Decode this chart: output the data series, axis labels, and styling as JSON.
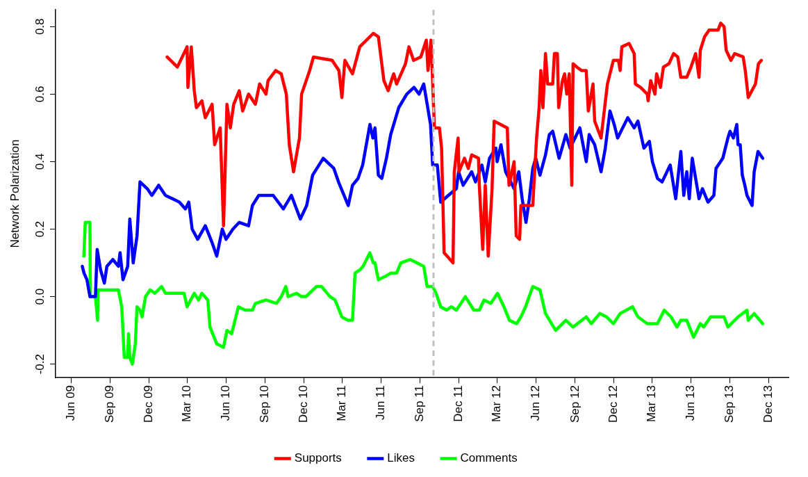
{
  "chart_data": {
    "type": "line",
    "ylabel": "Network Polarization",
    "grid": false,
    "legend": "bottom",
    "xlim": [
      "2009-04-25",
      "2014-01-17"
    ],
    "ylim": [
      -0.24,
      0.85
    ],
    "xticks": [
      {
        "value": "2009-06-01",
        "label": "Jun 09"
      },
      {
        "value": "2009-09-01",
        "label": "Sep 09"
      },
      {
        "value": "2009-12-01",
        "label": "Dec 09"
      },
      {
        "value": "2010-03-01",
        "label": "Mar 10"
      },
      {
        "value": "2010-06-01",
        "label": "Jun 10"
      },
      {
        "value": "2010-09-01",
        "label": "Sep 10"
      },
      {
        "value": "2010-12-01",
        "label": "Dec 10"
      },
      {
        "value": "2011-03-01",
        "label": "Mar 11"
      },
      {
        "value": "2011-06-01",
        "label": "Jun 11"
      },
      {
        "value": "2011-09-01",
        "label": "Sep 11"
      },
      {
        "value": "2011-12-01",
        "label": "Dec 11"
      },
      {
        "value": "2012-03-01",
        "label": "Mar 12"
      },
      {
        "value": "2012-06-01",
        "label": "Jun 12"
      },
      {
        "value": "2012-09-01",
        "label": "Sep 12"
      },
      {
        "value": "2012-12-01",
        "label": "Dec 12"
      },
      {
        "value": "2013-03-01",
        "label": "Mar 13"
      },
      {
        "value": "2013-06-01",
        "label": "Jun 13"
      },
      {
        "value": "2013-09-01",
        "label": "Sep 13"
      },
      {
        "value": "2013-12-01",
        "label": "Dec 13"
      }
    ],
    "yticks": [
      {
        "value": -0.2,
        "label": "-0.2"
      },
      {
        "value": 0,
        "label": "0.0"
      },
      {
        "value": 0.2,
        "label": "0.2"
      },
      {
        "value": 0.4,
        "label": "0.4"
      },
      {
        "value": 0.6,
        "label": "0.6"
      },
      {
        "value": 0.8,
        "label": "0.8"
      }
    ],
    "ref_lines": [
      {
        "axis": "x",
        "value": "2011-10-03",
        "color": "#bebebe",
        "line_style": "dashed"
      }
    ],
    "series": [
      {
        "name": "Supports",
        "color": "#ff0000",
        "x": [
          "2010-01-13",
          "2010-02-06",
          "2010-03-01",
          "2010-03-03",
          "2010-03-11",
          "2010-03-18",
          "2010-03-23",
          "2010-04-05",
          "2010-04-13",
          "2010-04-29",
          "2010-05-05",
          "2010-05-18",
          "2010-05-26",
          "2010-06-03",
          "2010-06-11",
          "2010-06-19",
          "2010-07-02",
          "2010-07-10",
          "2010-07-24",
          "2010-08-09",
          "2010-08-19",
          "2010-09-03",
          "2010-09-08",
          "2010-09-26",
          "2010-10-09",
          "2010-10-21",
          "2010-10-28",
          "2010-11-07",
          "2010-11-21",
          "2010-11-26",
          "2010-12-15",
          "2010-12-24",
          "2011-02-06",
          "2011-02-22",
          "2011-03-01",
          "2011-03-08",
          "2011-03-26",
          "2011-04-12",
          "2011-05-14",
          "2011-05-26",
          "2011-06-08",
          "2011-06-18",
          "2011-07-01",
          "2011-07-08",
          "2011-07-29",
          "2011-08-06",
          "2011-08-17",
          "2011-09-03",
          "2011-09-16",
          "2011-09-20",
          "2011-09-27",
          "2011-09-30",
          "2011-10-05",
          "2011-10-17",
          "2011-10-22",
          "2011-10-28",
          "2011-11-18",
          "2011-11-21",
          "2011-11-30",
          "2011-12-02",
          "2011-12-15",
          "2011-12-24",
          "2012-01-01",
          "2012-01-17",
          "2012-01-19",
          "2012-01-27",
          "2012-02-02",
          "2012-02-09",
          "2012-02-18",
          "2012-02-23",
          "2012-03-25",
          "2012-03-29",
          "2012-04-10",
          "2012-04-15",
          "2012-04-23",
          "2012-04-26",
          "2012-05-24",
          "2012-06-02",
          "2012-06-08",
          "2012-06-12",
          "2012-06-17",
          "2012-06-23",
          "2012-06-28",
          "2012-07-10",
          "2012-07-14",
          "2012-07-21",
          "2012-07-24",
          "2012-08-02",
          "2012-08-07",
          "2012-08-12",
          "2012-08-18",
          "2012-08-24",
          "2012-08-27",
          "2012-09-05",
          "2012-09-16",
          "2012-09-27",
          "2012-10-02",
          "2012-10-13",
          "2012-10-17",
          "2012-11-01",
          "2012-11-16",
          "2012-11-22",
          "2012-11-30",
          "2012-12-12",
          "2012-12-16",
          "2012-12-20",
          "2013-01-06",
          "2013-01-18",
          "2013-01-21",
          "2013-02-02",
          "2013-02-18",
          "2013-02-20",
          "2013-02-26",
          "2013-03-08",
          "2013-03-12",
          "2013-03-21",
          "2013-03-28",
          "2013-04-10",
          "2013-04-21",
          "2013-05-01",
          "2013-05-08",
          "2013-05-22",
          "2013-06-01",
          "2013-06-12",
          "2013-06-20",
          "2013-06-23",
          "2013-07-03",
          "2013-07-14",
          "2013-08-04",
          "2013-08-10",
          "2013-08-18",
          "2013-08-23",
          "2013-09-03",
          "2013-09-12",
          "2013-10-02",
          "2013-10-07",
          "2013-10-14",
          "2013-10-31",
          "2013-11-07",
          "2013-11-14"
        ],
        "values": [
          0.71,
          0.68,
          0.74,
          0.62,
          0.74,
          0.61,
          0.56,
          0.58,
          0.53,
          0.57,
          0.45,
          0.5,
          0.21,
          0.57,
          0.5,
          0.57,
          0.61,
          0.55,
          0.6,
          0.57,
          0.63,
          0.6,
          0.64,
          0.67,
          0.66,
          0.6,
          0.45,
          0.37,
          0.47,
          0.6,
          0.67,
          0.71,
          0.7,
          0.67,
          0.59,
          0.7,
          0.66,
          0.74,
          0.78,
          0.77,
          0.64,
          0.61,
          0.66,
          0.63,
          0.69,
          0.74,
          0.7,
          0.71,
          0.76,
          0.67,
          0.76,
          0.67,
          0.5,
          0.5,
          0.44,
          0.13,
          0.1,
          0.37,
          0.47,
          0.37,
          0.41,
          0.38,
          0.42,
          0.41,
          0.33,
          0.14,
          0.33,
          0.12,
          0.32,
          0.52,
          0.5,
          0.33,
          0.4,
          0.18,
          0.17,
          0.27,
          0.27,
          0.47,
          0.56,
          0.67,
          0.56,
          0.72,
          0.63,
          0.63,
          0.72,
          0.72,
          0.56,
          0.64,
          0.66,
          0.6,
          0.66,
          0.33,
          0.69,
          0.68,
          0.67,
          0.67,
          0.55,
          0.63,
          0.52,
          0.47,
          0.63,
          0.66,
          0.7,
          0.7,
          0.67,
          0.74,
          0.75,
          0.72,
          0.63,
          0.62,
          0.6,
          0.58,
          0.64,
          0.6,
          0.66,
          0.62,
          0.68,
          0.69,
          0.72,
          0.71,
          0.65,
          0.65,
          0.68,
          0.72,
          0.65,
          0.73,
          0.77,
          0.79,
          0.79,
          0.81,
          0.8,
          0.73,
          0.7,
          0.72,
          0.71,
          0.67,
          0.59,
          0.63,
          0.69,
          0.7
        ]
      },
      {
        "name": "Likes",
        "color": "#0000ff",
        "x": [
          "2009-06-27",
          "2009-07-01",
          "2009-07-08",
          "2009-07-15",
          "2009-07-28",
          "2009-08-01",
          "2009-08-09",
          "2009-08-18",
          "2009-08-24",
          "2009-09-07",
          "2009-09-20",
          "2009-09-24",
          "2009-10-01",
          "2009-10-12",
          "2009-10-17",
          "2009-10-25",
          "2009-11-03",
          "2009-11-10",
          "2009-11-27",
          "2009-12-08",
          "2009-12-24",
          "2010-01-09",
          "2010-02-11",
          "2010-02-25",
          "2010-03-05",
          "2010-03-13",
          "2010-03-26",
          "2010-04-13",
          "2010-04-29",
          "2010-05-10",
          "2010-05-23",
          "2010-06-01",
          "2010-06-17",
          "2010-07-02",
          "2010-07-24",
          "2010-08-02",
          "2010-08-17",
          "2010-09-20",
          "2010-10-14",
          "2010-11-02",
          "2010-11-23",
          "2010-12-08",
          "2010-12-22",
          "2011-01-16",
          "2011-02-10",
          "2011-02-21",
          "2011-03-16",
          "2011-03-26",
          "2011-04-08",
          "2011-04-19",
          "2011-05-06",
          "2011-05-13",
          "2011-05-18",
          "2011-05-26",
          "2011-06-03",
          "2011-06-14",
          "2011-06-24",
          "2011-07-13",
          "2011-08-01",
          "2011-08-18",
          "2011-08-30",
          "2011-09-10",
          "2011-09-18",
          "2011-09-26",
          "2011-10-01",
          "2011-10-12",
          "2011-10-20",
          "2011-11-07",
          "2011-11-26",
          "2011-12-01",
          "2011-12-12",
          "2012-01-01",
          "2012-01-10",
          "2012-01-25",
          "2012-02-02",
          "2012-02-12",
          "2012-02-27",
          "2012-03-01",
          "2012-03-10",
          "2012-03-21",
          "2012-04-10",
          "2012-04-21",
          "2012-04-29",
          "2012-05-08",
          "2012-05-16",
          "2012-05-24",
          "2012-05-31",
          "2012-06-10",
          "2012-06-23",
          "2012-07-02",
          "2012-07-10",
          "2012-07-25",
          "2012-08-10",
          "2012-08-20",
          "2012-09-12",
          "2012-09-27",
          "2012-10-04",
          "2012-10-17",
          "2012-11-01",
          "2012-11-11",
          "2012-11-22",
          "2012-12-02",
          "2012-12-10",
          "2013-01-03",
          "2013-01-18",
          "2013-01-27",
          "2013-02-10",
          "2013-02-23",
          "2013-03-02",
          "2013-03-14",
          "2013-03-25",
          "2013-04-13",
          "2013-04-26",
          "2013-05-08",
          "2013-05-15",
          "2013-05-22",
          "2013-05-28",
          "2013-06-04",
          "2013-06-20",
          "2013-06-28",
          "2013-07-11",
          "2013-07-25",
          "2013-07-30",
          "2013-08-15",
          "2013-08-27",
          "2013-09-01",
          "2013-09-09",
          "2013-09-17",
          "2013-09-20",
          "2013-09-25",
          "2013-09-30",
          "2013-10-06",
          "2013-10-11",
          "2013-10-23",
          "2013-10-28",
          "2013-11-06",
          "2013-11-17"
        ],
        "values": [
          0.09,
          0.07,
          0.05,
          0.0,
          0.0,
          0.14,
          0.08,
          0.04,
          0.09,
          0.11,
          0.09,
          0.13,
          0.05,
          0.09,
          0.23,
          0.1,
          0.18,
          0.34,
          0.32,
          0.3,
          0.33,
          0.3,
          0.28,
          0.26,
          0.28,
          0.2,
          0.17,
          0.21,
          0.16,
          0.12,
          0.2,
          0.17,
          0.2,
          0.22,
          0.21,
          0.27,
          0.3,
          0.3,
          0.26,
          0.3,
          0.23,
          0.27,
          0.36,
          0.41,
          0.38,
          0.34,
          0.27,
          0.33,
          0.35,
          0.39,
          0.51,
          0.47,
          0.5,
          0.36,
          0.35,
          0.41,
          0.48,
          0.56,
          0.6,
          0.62,
          0.6,
          0.63,
          0.57,
          0.51,
          0.39,
          0.39,
          0.28,
          0.3,
          0.32,
          0.37,
          0.33,
          0.37,
          0.34,
          0.39,
          0.34,
          0.41,
          0.44,
          0.4,
          0.45,
          0.37,
          0.32,
          0.37,
          0.29,
          0.22,
          0.29,
          0.38,
          0.41,
          0.36,
          0.42,
          0.48,
          0.49,
          0.41,
          0.48,
          0.44,
          0.5,
          0.4,
          0.48,
          0.45,
          0.37,
          0.44,
          0.55,
          0.51,
          0.47,
          0.53,
          0.5,
          0.52,
          0.44,
          0.46,
          0.4,
          0.35,
          0.34,
          0.39,
          0.29,
          0.43,
          0.3,
          0.37,
          0.29,
          0.41,
          0.29,
          0.32,
          0.28,
          0.3,
          0.38,
          0.41,
          0.47,
          0.49,
          0.47,
          0.51,
          0.45,
          0.45,
          0.36,
          0.33,
          0.3,
          0.27,
          0.37,
          0.43,
          0.41
        ]
      },
      {
        "name": "Comments",
        "color": "#00ff00",
        "x": [
          "2009-06-30",
          "2009-07-01",
          "2009-07-04",
          "2009-07-15",
          "2009-07-16",
          "2009-07-28",
          "2009-08-02",
          "2009-08-03",
          "2009-09-20",
          "2009-09-28",
          "2009-10-04",
          "2009-10-12",
          "2009-10-14",
          "2009-10-17",
          "2009-10-23",
          "2009-10-30",
          "2009-11-03",
          "2009-11-10",
          "2009-11-15",
          "2009-11-23",
          "2009-12-04",
          "2009-12-15",
          "2009-12-31",
          "2010-01-09",
          "2010-02-11",
          "2010-02-22",
          "2010-03-01",
          "2010-03-18",
          "2010-03-28",
          "2010-04-05",
          "2010-04-19",
          "2010-04-24",
          "2010-05-10",
          "2010-05-26",
          "2010-06-03",
          "2010-06-14",
          "2010-06-30",
          "2010-07-16",
          "2010-08-02",
          "2010-08-09",
          "2010-09-03",
          "2010-09-28",
          "2010-10-09",
          "2010-10-20",
          "2010-10-25",
          "2010-11-14",
          "2010-11-26",
          "2010-12-06",
          "2010-12-31",
          "2011-01-12",
          "2011-02-01",
          "2011-02-13",
          "2011-03-01",
          "2011-03-15",
          "2011-03-26",
          "2011-04-01",
          "2011-04-13",
          "2011-04-20",
          "2011-05-06",
          "2011-05-14",
          "2011-05-18",
          "2011-05-26",
          "2011-06-11",
          "2011-06-25",
          "2011-07-08",
          "2011-07-18",
          "2011-08-09",
          "2011-08-25",
          "2011-09-10",
          "2011-09-18",
          "2011-10-01",
          "2011-10-09",
          "2011-10-20",
          "2011-11-03",
          "2011-11-14",
          "2011-11-26",
          "2011-12-17",
          "2012-01-06",
          "2012-01-19",
          "2012-01-30",
          "2012-02-15",
          "2012-03-02",
          "2012-03-17",
          "2012-03-30",
          "2012-04-16",
          "2012-04-26",
          "2012-05-07",
          "2012-05-24",
          "2012-06-10",
          "2012-06-23",
          "2012-07-17",
          "2012-08-10",
          "2012-08-27",
          "2012-09-27",
          "2012-10-09",
          "2012-10-29",
          "2012-11-14",
          "2012-11-30",
          "2012-12-16",
          "2013-01-14",
          "2013-01-27",
          "2013-02-18",
          "2013-03-14",
          "2013-03-30",
          "2013-04-15",
          "2013-04-29",
          "2013-05-08",
          "2013-05-22",
          "2013-06-07",
          "2013-06-23",
          "2013-07-01",
          "2013-07-17",
          "2013-08-04",
          "2013-08-18",
          "2013-08-27",
          "2013-09-20",
          "2013-10-11",
          "2013-10-14",
          "2013-10-28",
          "2013-11-17"
        ],
        "values": [
          0.12,
          0.13,
          0.22,
          0.22,
          0.0,
          0.0,
          -0.07,
          0.02,
          0.02,
          -0.03,
          -0.18,
          -0.18,
          -0.11,
          -0.18,
          -0.2,
          -0.14,
          -0.03,
          -0.04,
          -0.06,
          0.0,
          0.02,
          0.01,
          0.03,
          0.01,
          0.01,
          0.01,
          -0.03,
          0.01,
          -0.01,
          0.01,
          -0.01,
          -0.09,
          -0.14,
          -0.15,
          -0.1,
          -0.11,
          -0.03,
          -0.04,
          -0.04,
          -0.02,
          -0.01,
          -0.02,
          0.0,
          0.03,
          0.0,
          0.01,
          0.0,
          0.0,
          0.03,
          0.03,
          0.0,
          -0.01,
          -0.06,
          -0.07,
          -0.07,
          0.07,
          0.08,
          0.09,
          0.13,
          0.1,
          0.1,
          0.05,
          0.06,
          0.07,
          0.07,
          0.1,
          0.11,
          0.1,
          0.09,
          0.03,
          0.03,
          0.01,
          -0.03,
          -0.04,
          -0.03,
          -0.04,
          0.0,
          -0.04,
          -0.04,
          -0.01,
          -0.02,
          0.01,
          -0.03,
          -0.07,
          -0.08,
          -0.06,
          -0.03,
          0.03,
          0.02,
          -0.05,
          -0.1,
          -0.07,
          -0.09,
          -0.06,
          -0.08,
          -0.05,
          -0.06,
          -0.08,
          -0.05,
          -0.03,
          -0.06,
          -0.08,
          -0.08,
          -0.04,
          -0.06,
          -0.09,
          -0.07,
          -0.07,
          -0.12,
          -0.08,
          -0.09,
          -0.06,
          -0.06,
          -0.06,
          -0.09,
          -0.06,
          -0.04,
          -0.07,
          -0.05,
          -0.08
        ]
      }
    ]
  }
}
